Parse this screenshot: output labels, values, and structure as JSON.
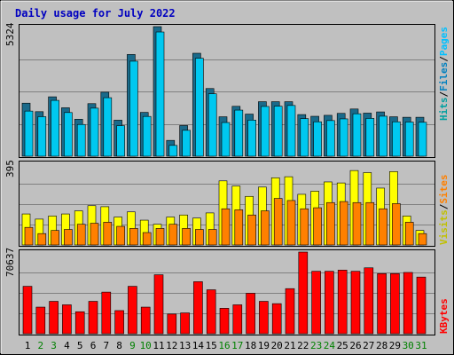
{
  "title": "Daily usage for July 2022",
  "colors": {
    "title": "#0000c0",
    "hits": "#00c0ff",
    "hits_shadow": "#007090",
    "files": "#1f8fbf",
    "pages": "#00c8f0",
    "visits": "#ffff00",
    "sites": "#ff8000",
    "kbytes": "#ff0000",
    "weekend_label": "#008000",
    "weekday_label": "#000000",
    "panel_bg": "#c0c0c0",
    "grid": "#808080"
  },
  "legend": {
    "top": [
      {
        "text": "Hits",
        "color": "#00a0a0"
      },
      {
        "text": "/",
        "color": "#000000"
      },
      {
        "text": "Files",
        "color": "#0080c0"
      },
      {
        "text": "/",
        "color": "#000000"
      },
      {
        "text": "Pages",
        "color": "#00c0ff"
      }
    ],
    "middle": [
      {
        "text": "Visits",
        "color": "#c0c000"
      },
      {
        "text": "/",
        "color": "#000000"
      },
      {
        "text": "Sites",
        "color": "#ff8000"
      }
    ],
    "bottom": [
      {
        "text": "KBytes",
        "color": "#ff0000"
      }
    ]
  },
  "chart_data": {
    "type": "bar",
    "title": "Daily usage for July 2022",
    "categories": [
      "1",
      "2",
      "3",
      "4",
      "5",
      "6",
      "7",
      "8",
      "9",
      "10",
      "11",
      "12",
      "13",
      "14",
      "15",
      "16",
      "17",
      "18",
      "19",
      "20",
      "21",
      "22",
      "23",
      "24",
      "25",
      "26",
      "27",
      "28",
      "29",
      "30",
      "31"
    ],
    "weekend_days": [
      "2",
      "3",
      "9",
      "10",
      "16",
      "17",
      "23",
      "24",
      "30",
      "31"
    ],
    "panels": [
      {
        "name": "hits-files-pages",
        "ymax_label": "5324",
        "ylim": [
          0,
          5324
        ],
        "series": [
          {
            "name": "Hits",
            "values": [
              2180,
              1830,
              2440,
              1990,
              1520,
              2160,
              2630,
              1480,
              4180,
              1800,
              5324,
              650,
              1260,
              4230,
              2780,
              1620,
              2050,
              1730,
              2240,
              2240,
              2240,
              1710,
              1640,
              1680,
              1760,
              1940,
              1770,
              1820,
              1620,
              1600,
              1600
            ]
          },
          {
            "name": "Files",
            "values": [
              2000,
              1770,
              2440,
              1940,
              1450,
              2120,
              2550,
              1400,
              4050,
              1780,
              5250,
              590,
              1210,
              4170,
              2710,
              1530,
              2040,
              1630,
              2190,
              2200,
              2230,
              1690,
              1560,
              1610,
              1680,
              1890,
              1700,
              1790,
              1560,
              1550,
              1540
            ]
          }
        ]
      },
      {
        "name": "visits-sites",
        "ymax_label": "395",
        "ylim": [
          0,
          395
        ],
        "series": [
          {
            "name": "Visits",
            "values": [
              150,
              125,
              140,
              150,
              165,
              190,
              185,
              135,
              160,
              120,
              100,
              135,
              145,
              130,
              155,
              310,
              285,
              235,
              280,
              325,
              330,
              245,
              260,
              305,
              300,
              360,
              350,
              275,
              355,
              140,
              70
            ]
          },
          {
            "name": "Sites",
            "values": [
              85,
              55,
              70,
              75,
              100,
              105,
              110,
              90,
              80,
              60,
              80,
              100,
              80,
              75,
              75,
              175,
              170,
              145,
              165,
              225,
              215,
              175,
              180,
              205,
              210,
              205,
              205,
              175,
              200,
              110,
              55
            ]
          }
        ]
      },
      {
        "name": "kbytes",
        "ymax_label": "70637",
        "ylim": [
          0,
          70637
        ],
        "series": [
          {
            "name": "KBytes",
            "values": [
              41000,
              23000,
              28000,
              25000,
              19000,
              28000,
              36000,
              20000,
              41000,
              23000,
              51000,
              17000,
              18000,
              45000,
              38000,
              22000,
              25000,
              35000,
              28000,
              26000,
              39000,
              70637,
              54000,
              54000,
              55000,
              54000,
              57000,
              52000,
              52000,
              53000,
              49000
            ]
          }
        ]
      }
    ]
  }
}
